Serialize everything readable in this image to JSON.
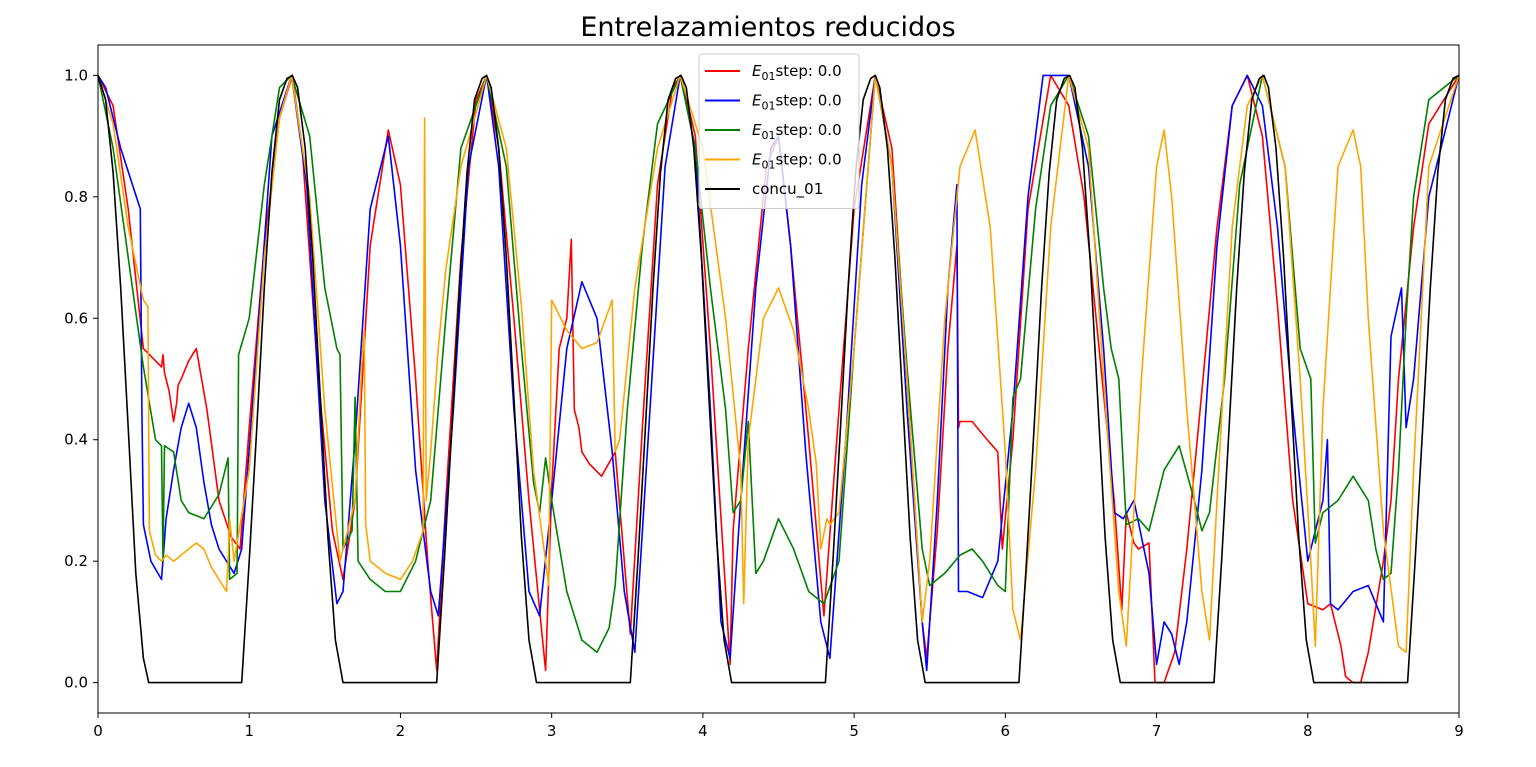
{
  "chart_data": {
    "type": "line",
    "title": "Entrelazamientos reducidos",
    "xlabel": "",
    "ylabel": "",
    "xlim": [
      0,
      9
    ],
    "ylim": [
      -0.05,
      1.05
    ],
    "xticks": [
      "0",
      "1",
      "2",
      "3",
      "4",
      "5",
      "6",
      "7",
      "8",
      "9"
    ],
    "yticks": [
      "0.0",
      "0.2",
      "0.4",
      "0.6",
      "0.8",
      "1.0"
    ],
    "grid": false,
    "legend_position": "top-center",
    "series": [
      {
        "name": "E01step: 0.0",
        "legend_sub": "01",
        "legend_text": "step: 0.0",
        "color": "#ff0000",
        "x": [
          0,
          0.1,
          0.2,
          0.3,
          0.42,
          0.43,
          0.44,
          0.47,
          0.5,
          0.52,
          0.53,
          0.55,
          0.6,
          0.65,
          0.72,
          0.8,
          0.88,
          0.94,
          1.0,
          1.1,
          1.2,
          1.285,
          1.35,
          1.45,
          1.55,
          1.62,
          1.7,
          1.8,
          1.92,
          2.0,
          2.1,
          2.18,
          2.24,
          2.3,
          2.4,
          2.5,
          2.57,
          2.65,
          2.75,
          2.85,
          2.92,
          2.96,
          3.0,
          3.05,
          3.1,
          3.13,
          3.15,
          3.18,
          3.2,
          3.25,
          3.33,
          3.42,
          3.48,
          3.52,
          3.6,
          3.7,
          3.8,
          3.855,
          3.95,
          4.05,
          4.15,
          4.18,
          4.2,
          4.3,
          4.42,
          4.5,
          4.58,
          4.7,
          4.8,
          4.9,
          5.0,
          5.14,
          5.25,
          5.35,
          5.45,
          5.48,
          5.55,
          5.62,
          5.68,
          5.69,
          5.7,
          5.78,
          5.88,
          5.95,
          5.98,
          6.05,
          6.15,
          6.3,
          6.42,
          6.52,
          6.62,
          6.72,
          6.77,
          6.8,
          6.85,
          6.88,
          6.95,
          6.99,
          7.0,
          7.05,
          7.12,
          7.2,
          7.3,
          7.4,
          7.5,
          7.6,
          7.7,
          7.8,
          7.9,
          8.0,
          8.1,
          8.15,
          8.22,
          8.25,
          8.3,
          8.35,
          8.4,
          8.5,
          8.55,
          8.6,
          8.7,
          8.8,
          9.0
        ],
        "y": [
          1.0,
          0.95,
          0.78,
          0.55,
          0.52,
          0.54,
          0.51,
          0.48,
          0.43,
          0.46,
          0.49,
          0.5,
          0.53,
          0.55,
          0.45,
          0.3,
          0.24,
          0.22,
          0.42,
          0.72,
          0.93,
          1.0,
          0.88,
          0.52,
          0.25,
          0.17,
          0.3,
          0.72,
          0.91,
          0.82,
          0.5,
          0.2,
          0.02,
          0.3,
          0.7,
          0.96,
          1.0,
          0.88,
          0.6,
          0.3,
          0.12,
          0.02,
          0.32,
          0.55,
          0.6,
          0.73,
          0.45,
          0.42,
          0.38,
          0.36,
          0.34,
          0.38,
          0.2,
          0.08,
          0.42,
          0.82,
          0.98,
          1.0,
          0.9,
          0.55,
          0.15,
          0.03,
          0.25,
          0.55,
          0.85,
          0.9,
          0.72,
          0.4,
          0.11,
          0.45,
          0.78,
          1.0,
          0.88,
          0.5,
          0.1,
          0.04,
          0.25,
          0.55,
          0.72,
          0.42,
          0.43,
          0.43,
          0.4,
          0.38,
          0.22,
          0.4,
          0.78,
          1.0,
          0.95,
          0.8,
          0.55,
          0.3,
          0.12,
          0.28,
          0.23,
          0.22,
          0.23,
          0.0,
          0.0,
          0.0,
          0.05,
          0.22,
          0.48,
          0.75,
          0.95,
          1.0,
          0.9,
          0.62,
          0.3,
          0.13,
          0.12,
          0.13,
          0.06,
          0.01,
          0.0,
          0.0,
          0.05,
          0.2,
          0.3,
          0.5,
          0.75,
          0.92,
          1.0
        ]
      },
      {
        "name": "E01step: 0.0",
        "legend_sub": "01",
        "legend_text": "step: 0.0",
        "color": "#0000ff",
        "x": [
          0,
          0.05,
          0.15,
          0.28,
          0.29,
          0.3,
          0.35,
          0.42,
          0.45,
          0.5,
          0.55,
          0.6,
          0.65,
          0.7,
          0.75,
          0.8,
          0.85,
          0.9,
          0.95,
          1.05,
          1.15,
          1.28,
          1.38,
          1.5,
          1.58,
          1.62,
          1.7,
          1.8,
          1.92,
          2.0,
          2.1,
          2.2,
          2.25,
          2.35,
          2.45,
          2.57,
          2.65,
          2.75,
          2.85,
          2.92,
          3.0,
          3.1,
          3.2,
          3.3,
          3.4,
          3.48,
          3.55,
          3.65,
          3.75,
          3.85,
          3.95,
          4.05,
          4.12,
          4.18,
          4.25,
          4.35,
          4.45,
          4.5,
          4.58,
          4.68,
          4.78,
          4.84,
          4.95,
          5.05,
          5.14,
          5.25,
          5.35,
          5.45,
          5.48,
          5.55,
          5.62,
          5.68,
          5.69,
          5.7,
          5.75,
          5.85,
          5.95,
          6.05,
          6.15,
          6.25,
          6.42,
          6.55,
          6.65,
          6.72,
          6.78,
          6.85,
          6.95,
          7.0,
          7.05,
          7.1,
          7.15,
          7.2,
          7.3,
          7.4,
          7.5,
          7.6,
          7.7,
          7.8,
          7.9,
          8.0,
          8.1,
          8.13,
          8.15,
          8.2,
          8.3,
          8.4,
          8.5,
          8.55,
          8.62,
          8.65,
          8.7,
          8.8,
          9.0
        ],
        "y": [
          1.0,
          0.98,
          0.88,
          0.78,
          0.45,
          0.26,
          0.2,
          0.17,
          0.27,
          0.35,
          0.42,
          0.46,
          0.42,
          0.33,
          0.26,
          0.22,
          0.2,
          0.18,
          0.22,
          0.55,
          0.9,
          1.0,
          0.82,
          0.3,
          0.13,
          0.15,
          0.4,
          0.78,
          0.9,
          0.72,
          0.35,
          0.15,
          0.11,
          0.45,
          0.85,
          1.0,
          0.85,
          0.45,
          0.15,
          0.11,
          0.3,
          0.55,
          0.66,
          0.6,
          0.38,
          0.15,
          0.05,
          0.45,
          0.85,
          1.0,
          0.88,
          0.45,
          0.1,
          0.04,
          0.3,
          0.65,
          0.88,
          0.9,
          0.72,
          0.38,
          0.1,
          0.04,
          0.42,
          0.82,
          1.0,
          0.85,
          0.45,
          0.1,
          0.02,
          0.3,
          0.65,
          0.82,
          0.15,
          0.15,
          0.15,
          0.14,
          0.2,
          0.45,
          0.8,
          1.0,
          1.0,
          0.85,
          0.55,
          0.28,
          0.27,
          0.3,
          0.18,
          0.03,
          0.1,
          0.08,
          0.03,
          0.1,
          0.35,
          0.72,
          0.95,
          1.0,
          0.95,
          0.75,
          0.45,
          0.2,
          0.3,
          0.4,
          0.13,
          0.12,
          0.15,
          0.16,
          0.1,
          0.57,
          0.65,
          0.42,
          0.5,
          0.8,
          1.0
        ]
      },
      {
        "name": "E01step: 0.0",
        "legend_sub": "01",
        "legend_text": "step: 0.0",
        "color": "#008000",
        "x": [
          0,
          0.1,
          0.2,
          0.3,
          0.38,
          0.42,
          0.43,
          0.44,
          0.5,
          0.55,
          0.6,
          0.7,
          0.8,
          0.86,
          0.87,
          0.92,
          0.93,
          1.0,
          1.1,
          1.2,
          1.28,
          1.4,
          1.5,
          1.58,
          1.6,
          1.62,
          1.68,
          1.7,
          1.72,
          1.8,
          1.9,
          2.0,
          2.1,
          2.15,
          2.2,
          2.3,
          2.4,
          2.57,
          2.7,
          2.8,
          2.88,
          2.92,
          2.96,
          3.0,
          3.1,
          3.2,
          3.3,
          3.38,
          3.42,
          3.5,
          3.6,
          3.7,
          3.85,
          3.95,
          4.05,
          4.15,
          4.2,
          4.25,
          4.3,
          4.35,
          4.4,
          4.5,
          4.6,
          4.7,
          4.8,
          4.9,
          5.0,
          5.14,
          5.25,
          5.35,
          5.45,
          5.5,
          5.6,
          5.7,
          5.78,
          5.85,
          5.95,
          6.0,
          6.05,
          6.1,
          6.2,
          6.3,
          6.42,
          6.55,
          6.65,
          6.7,
          6.75,
          6.8,
          6.88,
          6.95,
          7.05,
          7.15,
          7.25,
          7.3,
          7.35,
          7.45,
          7.55,
          7.7,
          7.85,
          7.95,
          8.02,
          8.05,
          8.1,
          8.2,
          8.3,
          8.4,
          8.45,
          8.5,
          8.55,
          8.6,
          8.65,
          8.7,
          8.8,
          9.0
        ],
        "y": [
          1.0,
          0.88,
          0.7,
          0.52,
          0.4,
          0.39,
          0.2,
          0.39,
          0.38,
          0.3,
          0.28,
          0.27,
          0.31,
          0.37,
          0.17,
          0.18,
          0.54,
          0.6,
          0.82,
          0.98,
          1.0,
          0.9,
          0.65,
          0.55,
          0.54,
          0.22,
          0.25,
          0.47,
          0.2,
          0.17,
          0.15,
          0.15,
          0.2,
          0.25,
          0.3,
          0.6,
          0.88,
          1.0,
          0.85,
          0.55,
          0.33,
          0.28,
          0.37,
          0.3,
          0.15,
          0.07,
          0.05,
          0.09,
          0.16,
          0.45,
          0.72,
          0.92,
          1.0,
          0.88,
          0.65,
          0.45,
          0.28,
          0.3,
          0.43,
          0.18,
          0.2,
          0.27,
          0.22,
          0.15,
          0.13,
          0.2,
          0.55,
          1.0,
          0.85,
          0.52,
          0.22,
          0.16,
          0.18,
          0.21,
          0.22,
          0.2,
          0.16,
          0.15,
          0.47,
          0.5,
          0.78,
          0.95,
          1.0,
          0.9,
          0.65,
          0.55,
          0.5,
          0.26,
          0.27,
          0.25,
          0.35,
          0.39,
          0.3,
          0.25,
          0.28,
          0.5,
          0.82,
          1.0,
          0.85,
          0.55,
          0.5,
          0.23,
          0.28,
          0.3,
          0.34,
          0.3,
          0.22,
          0.17,
          0.18,
          0.35,
          0.6,
          0.8,
          0.96,
          1.0
        ]
      },
      {
        "name": "E01step: 0.0",
        "legend_sub": "01",
        "legend_text": "step: 0.0",
        "color": "#ffa500",
        "x": [
          0,
          0.1,
          0.2,
          0.3,
          0.33,
          0.34,
          0.38,
          0.42,
          0.45,
          0.5,
          0.55,
          0.6,
          0.65,
          0.7,
          0.75,
          0.8,
          0.85,
          0.86,
          0.87,
          0.9,
          1.0,
          1.1,
          1.2,
          1.28,
          1.4,
          1.5,
          1.6,
          1.7,
          1.75,
          1.76,
          1.77,
          1.8,
          1.9,
          2.0,
          2.08,
          2.15,
          2.16,
          2.17,
          2.2,
          2.25,
          2.3,
          2.4,
          2.57,
          2.7,
          2.8,
          2.88,
          2.96,
          2.98,
          3.0,
          3.1,
          3.2,
          3.3,
          3.4,
          3.42,
          3.45,
          3.55,
          3.7,
          3.85,
          4.0,
          4.15,
          4.25,
          4.27,
          4.3,
          4.4,
          4.5,
          4.6,
          4.7,
          4.75,
          4.78,
          4.82,
          4.84,
          4.9,
          5.0,
          5.14,
          5.25,
          5.35,
          5.45,
          5.5,
          5.6,
          5.7,
          5.8,
          5.9,
          6.0,
          6.05,
          6.1,
          6.2,
          6.3,
          6.42,
          6.55,
          6.65,
          6.75,
          6.8,
          6.9,
          7.0,
          7.05,
          7.1,
          7.2,
          7.3,
          7.35,
          7.4,
          7.5,
          7.6,
          7.7,
          7.85,
          7.95,
          8.02,
          8.05,
          8.1,
          8.2,
          8.3,
          8.35,
          8.4,
          8.5,
          8.6,
          8.65,
          8.7,
          8.8,
          9.0
        ],
        "y": [
          1.0,
          0.92,
          0.75,
          0.63,
          0.62,
          0.25,
          0.21,
          0.2,
          0.21,
          0.2,
          0.21,
          0.22,
          0.23,
          0.22,
          0.19,
          0.17,
          0.15,
          0.2,
          0.27,
          0.2,
          0.35,
          0.7,
          0.93,
          1.0,
          0.8,
          0.45,
          0.2,
          0.3,
          0.55,
          0.58,
          0.26,
          0.2,
          0.18,
          0.17,
          0.2,
          0.25,
          0.93,
          0.3,
          0.38,
          0.55,
          0.68,
          0.85,
          1.0,
          0.88,
          0.62,
          0.35,
          0.2,
          0.16,
          0.63,
          0.58,
          0.55,
          0.56,
          0.63,
          0.38,
          0.4,
          0.65,
          0.88,
          1.0,
          0.88,
          0.6,
          0.35,
          0.13,
          0.4,
          0.6,
          0.65,
          0.58,
          0.45,
          0.36,
          0.22,
          0.27,
          0.26,
          0.28,
          0.55,
          1.0,
          0.85,
          0.5,
          0.1,
          0.2,
          0.6,
          0.85,
          0.91,
          0.75,
          0.38,
          0.12,
          0.07,
          0.35,
          0.75,
          1.0,
          0.88,
          0.5,
          0.15,
          0.06,
          0.5,
          0.85,
          0.91,
          0.8,
          0.45,
          0.15,
          0.07,
          0.3,
          0.75,
          0.95,
          1.0,
          0.85,
          0.5,
          0.2,
          0.06,
          0.45,
          0.85,
          0.91,
          0.85,
          0.6,
          0.25,
          0.06,
          0.05,
          0.35,
          0.85,
          1.0
        ]
      },
      {
        "name": "concu_01",
        "color": "#000000",
        "x": [
          0,
          0.05,
          0.1,
          0.15,
          0.2,
          0.25,
          0.3,
          0.335,
          0.95,
          1.0,
          1.05,
          1.1,
          1.15,
          1.2,
          1.25,
          1.285,
          1.32,
          1.37,
          1.42,
          1.47,
          1.52,
          1.57,
          1.62,
          2.24,
          2.29,
          2.34,
          2.39,
          2.44,
          2.49,
          2.54,
          2.57,
          2.6,
          2.65,
          2.7,
          2.75,
          2.8,
          2.85,
          2.9,
          3.52,
          3.57,
          3.62,
          3.67,
          3.72,
          3.77,
          3.82,
          3.855,
          3.89,
          3.94,
          3.99,
          4.04,
          4.09,
          4.14,
          4.19,
          4.81,
          4.86,
          4.91,
          4.96,
          5.01,
          5.06,
          5.11,
          5.14,
          5.17,
          5.22,
          5.27,
          5.32,
          5.37,
          5.42,
          5.47,
          6.09,
          6.14,
          6.19,
          6.24,
          6.29,
          6.34,
          6.39,
          6.425,
          6.46,
          6.51,
          6.56,
          6.61,
          6.66,
          6.71,
          6.76,
          7.38,
          7.43,
          7.48,
          7.53,
          7.58,
          7.63,
          7.68,
          7.71,
          7.74,
          7.79,
          7.84,
          7.89,
          7.94,
          7.99,
          8.04,
          8.66,
          8.71,
          8.76,
          8.81,
          8.86,
          8.91,
          8.96,
          9.0
        ],
        "y": [
          1.0,
          0.96,
          0.84,
          0.65,
          0.42,
          0.18,
          0.04,
          0.0,
          0.0,
          0.2,
          0.42,
          0.65,
          0.84,
          0.96,
          0.995,
          1.0,
          0.98,
          0.88,
          0.7,
          0.47,
          0.24,
          0.07,
          0.0,
          0.0,
          0.2,
          0.42,
          0.65,
          0.84,
          0.96,
          0.995,
          1.0,
          0.98,
          0.88,
          0.7,
          0.47,
          0.24,
          0.07,
          0.0,
          0.0,
          0.2,
          0.42,
          0.65,
          0.84,
          0.96,
          0.995,
          1.0,
          0.98,
          0.88,
          0.7,
          0.47,
          0.24,
          0.07,
          0.0,
          0.0,
          0.2,
          0.42,
          0.65,
          0.84,
          0.96,
          0.995,
          1.0,
          0.98,
          0.88,
          0.7,
          0.47,
          0.24,
          0.07,
          0.0,
          0.0,
          0.2,
          0.42,
          0.65,
          0.84,
          0.96,
          0.995,
          1.0,
          0.98,
          0.88,
          0.7,
          0.47,
          0.24,
          0.07,
          0.0,
          0.0,
          0.2,
          0.42,
          0.65,
          0.84,
          0.96,
          0.995,
          1.0,
          0.98,
          0.88,
          0.7,
          0.47,
          0.24,
          0.07,
          0.0,
          0.0,
          0.2,
          0.42,
          0.65,
          0.84,
          0.96,
          0.995,
          1.0
        ]
      }
    ]
  }
}
